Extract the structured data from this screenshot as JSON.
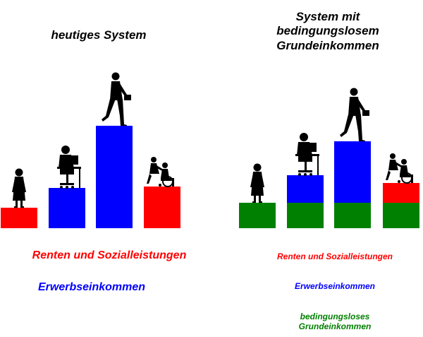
{
  "left": {
    "title": "heutiges System",
    "bars": [
      {
        "person": "woman",
        "segments": [
          {
            "component": "renten",
            "height": 0.2
          }
        ]
      },
      {
        "person": "office-worker",
        "segments": [
          {
            "component": "erwerb",
            "height": 0.39
          }
        ]
      },
      {
        "person": "walking-businessman",
        "segments": [
          {
            "component": "erwerb",
            "height": 1.0
          }
        ]
      },
      {
        "person": "wheelchair-user",
        "segments": [
          {
            "component": "renten",
            "height": 0.41
          }
        ]
      }
    ]
  },
  "right": {
    "title_line1": "System mit",
    "title_line2": "bedingungslosem",
    "title_line3": "Grundeinkommen",
    "bars": [
      {
        "person": "woman",
        "segments": [
          {
            "component": "grund",
            "height": 0.25
          }
        ]
      },
      {
        "person": "office-worker",
        "segments": [
          {
            "component": "grund",
            "height": 0.25
          },
          {
            "component": "erwerb",
            "height": 0.27
          }
        ]
      },
      {
        "person": "walking-businessman",
        "segments": [
          {
            "component": "grund",
            "height": 0.25
          },
          {
            "component": "erwerb",
            "height": 0.6
          }
        ]
      },
      {
        "person": "wheelchair-user",
        "segments": [
          {
            "component": "grund",
            "height": 0.25
          },
          {
            "component": "renten",
            "height": 0.19
          }
        ]
      }
    ]
  },
  "legend": {
    "renten": "Renten und Sozialleistungen",
    "erwerb": "Erwerbseinkommen",
    "grund_line1": "bedingungsloses",
    "grund_line2": "Grundeinkommen"
  },
  "colors": {
    "renten": "#ff0000",
    "erwerb": "#0000ff",
    "grund": "#008000",
    "figure": "#000000"
  }
}
